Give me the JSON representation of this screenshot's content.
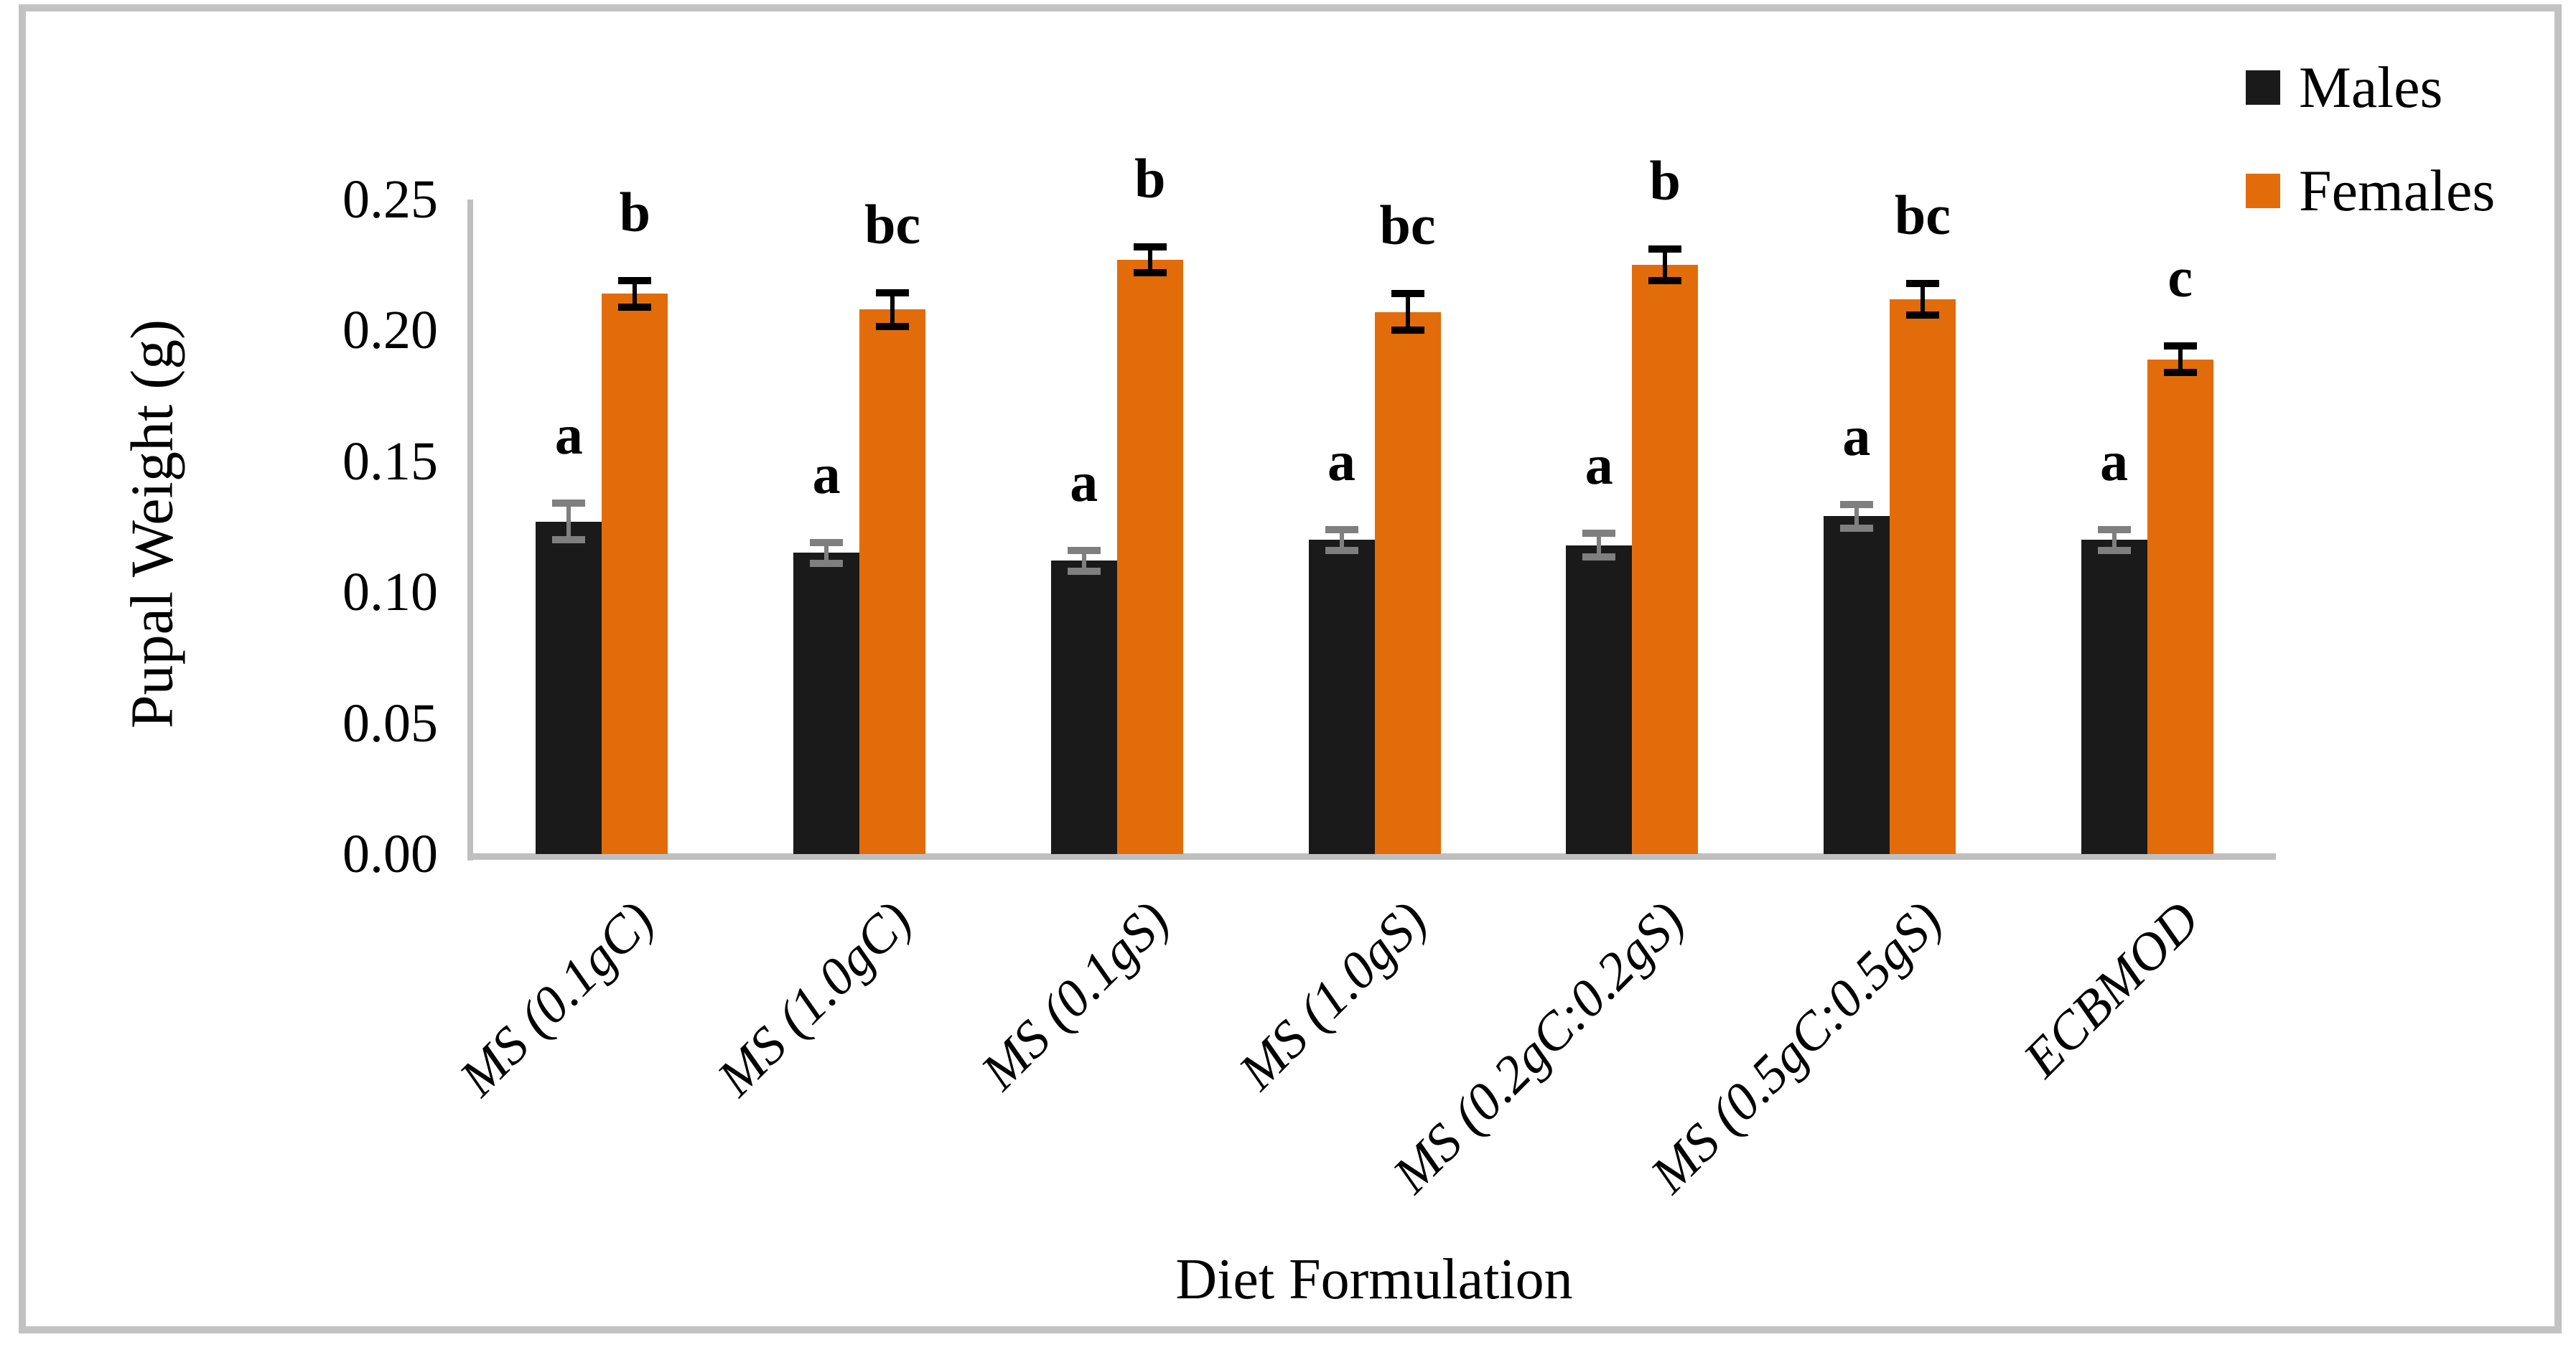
{
  "figure": {
    "border_color": "#c2c2c2",
    "axis_color": "#bfbfbf",
    "background": "#ffffff"
  },
  "chart_data": {
    "type": "bar",
    "title": "",
    "xlabel": "Diet Formulation",
    "ylabel": "Pupal Weight (g)",
    "ylim": [
      0,
      0.25
    ],
    "grid": false,
    "legend_position": "top-right",
    "yticks": [
      {
        "label": "0.00",
        "value": 0.0
      },
      {
        "label": "0.05",
        "value": 0.05
      },
      {
        "label": "0.10",
        "value": 0.1
      },
      {
        "label": "0.15",
        "value": 0.15
      },
      {
        "label": "0.20",
        "value": 0.2
      },
      {
        "label": "0.25",
        "value": 0.25
      }
    ],
    "categories": [
      "MS (0.1gC)",
      "MS (1.0gC)",
      "MS (0.1gS)",
      "MS (1.0gS)",
      "MS (0.2gC:0.2gS)",
      "MS (0.5gC:0.5gS)",
      "ECBMOD"
    ],
    "series": [
      {
        "name": "Males",
        "color": "#1a1a1a",
        "error_color": "#7f7f7f",
        "values": [
          0.127,
          0.115,
          0.112,
          0.12,
          0.118,
          0.129,
          0.12
        ],
        "errors": [
          0.007,
          0.004,
          0.004,
          0.004,
          0.0045,
          0.0045,
          0.004
        ],
        "letters": [
          "a",
          "a",
          "a",
          "a",
          "a",
          "a",
          "a"
        ]
      },
      {
        "name": "Females",
        "color": "#e36c0a",
        "error_color": "#000000",
        "values": [
          0.214,
          0.208,
          0.227,
          0.207,
          0.225,
          0.212,
          0.189
        ],
        "errors": [
          0.005,
          0.0065,
          0.005,
          0.007,
          0.006,
          0.006,
          0.005
        ],
        "letters": [
          "b",
          "bc",
          "b",
          "bc",
          "b",
          "bc",
          "c"
        ]
      }
    ]
  }
}
